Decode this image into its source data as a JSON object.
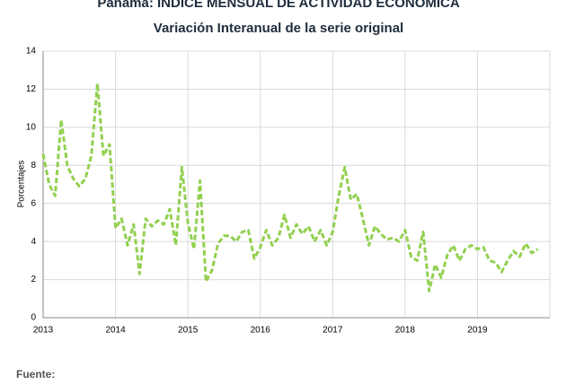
{
  "chart_data": {
    "type": "line",
    "title": "Panamá: ÍNDICE MENSUAL DE ACTIVIDAD ECONÓMICA",
    "subtitle": "Variación Interanual de la serie original",
    "y_label": "Porcentajes",
    "footer": "Fuente:",
    "categories": [
      "2013",
      null,
      null,
      null,
      null,
      null,
      null,
      null,
      null,
      null,
      null,
      null,
      "2014",
      null,
      null,
      null,
      null,
      null,
      null,
      null,
      null,
      null,
      null,
      null,
      "2015",
      null,
      null,
      null,
      null,
      null,
      null,
      null,
      null,
      null,
      null,
      null,
      "2016",
      null,
      null,
      null,
      null,
      null,
      null,
      null,
      null,
      null,
      null,
      null,
      "2017",
      null,
      null,
      null,
      null,
      null,
      null,
      null,
      null,
      null,
      null,
      null,
      "2018",
      null,
      null,
      null,
      null,
      null,
      null,
      null,
      null,
      null,
      null,
      null,
      "2019",
      null,
      null,
      null,
      null,
      null,
      null,
      null,
      null,
      null,
      null
    ],
    "series": [
      {
        "color": "#92d050",
        "values": [
          8.6,
          7.0,
          6.4,
          10.4,
          8.0,
          7.3,
          6.9,
          7.3,
          8.5,
          12.3,
          8.5,
          9.1,
          4.7,
          5.2,
          3.8,
          4.9,
          2.3,
          5.2,
          4.8,
          5.1,
          4.9,
          5.7,
          3.8,
          7.9,
          5.0,
          3.6,
          7.2,
          1.9,
          2.5,
          3.9,
          4.3,
          4.3,
          4.0,
          4.5,
          4.6,
          3.1,
          3.7,
          4.6,
          3.8,
          4.2,
          5.4,
          4.2,
          4.9,
          4.4,
          4.8,
          4.0,
          4.6,
          3.8,
          4.5,
          6.4,
          7.9,
          6.2,
          6.5,
          5.2,
          3.8,
          4.8,
          4.4,
          4.1,
          4.2,
          4.0,
          4.6,
          3.2,
          3.0,
          4.5,
          1.4,
          2.8,
          2.1,
          3.3,
          3.8,
          3.0,
          3.6,
          3.8,
          3.6,
          3.7,
          3.0,
          2.9,
          2.4,
          3.0,
          3.5,
          3.2,
          3.9,
          3.4,
          3.6
        ]
      }
    ],
    "ylim": [
      0,
      14
    ],
    "yticks": [
      0,
      2,
      4,
      6,
      8,
      10,
      12,
      14
    ],
    "grid": true
  }
}
